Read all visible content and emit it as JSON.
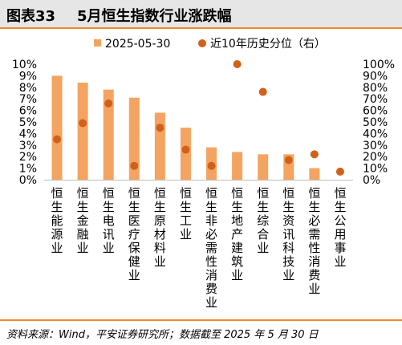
{
  "figure": {
    "number": "图表33",
    "title": "5月恒生指数行业涨跌幅",
    "source": "资料来源：Wind，平安证券研究所；数据截至 2025 年 5 月 30 日"
  },
  "colors": {
    "bar": "#f4a460",
    "dot": "#d2601a",
    "accent": "#f08a2c",
    "header_bg": "#e6e6e6"
  },
  "chart_data": {
    "type": "bar",
    "categories": [
      "恒生能源业",
      "恒生金融业",
      "恒生电讯业",
      "恒生医疗保健业",
      "恒生原材料业",
      "恒生工业",
      "恒生非必需性消费业",
      "恒生地产建筑业",
      "恒生综合业",
      "恒生资讯科技业",
      "恒生必需性消费业",
      "恒生公用事业"
    ],
    "series": [
      {
        "name": "2025-05-30",
        "type": "bar",
        "axis": "left",
        "unit": "%",
        "values": [
          9.0,
          8.4,
          7.8,
          7.1,
          5.8,
          4.5,
          2.8,
          2.4,
          2.2,
          2.2,
          1.0,
          0.0
        ]
      },
      {
        "name": "近10年历史分位（右）",
        "type": "scatter",
        "axis": "right",
        "unit": "%",
        "values": [
          35,
          49,
          66,
          12,
          45,
          26,
          12,
          100,
          76,
          17,
          22,
          7
        ]
      }
    ],
    "y_left": {
      "ticks": [
        "0%",
        "1%",
        "2%",
        "3%",
        "4%",
        "5%",
        "6%",
        "7%",
        "8%",
        "9%",
        "10%"
      ],
      "ylim": [
        0,
        10
      ]
    },
    "y_right": {
      "ticks": [
        "0%",
        "10%",
        "20%",
        "30%",
        "40%",
        "50%",
        "60%",
        "70%",
        "80%",
        "90%",
        "100%"
      ],
      "ylim": [
        0,
        100
      ]
    },
    "legend_position": "top",
    "grid": false
  }
}
